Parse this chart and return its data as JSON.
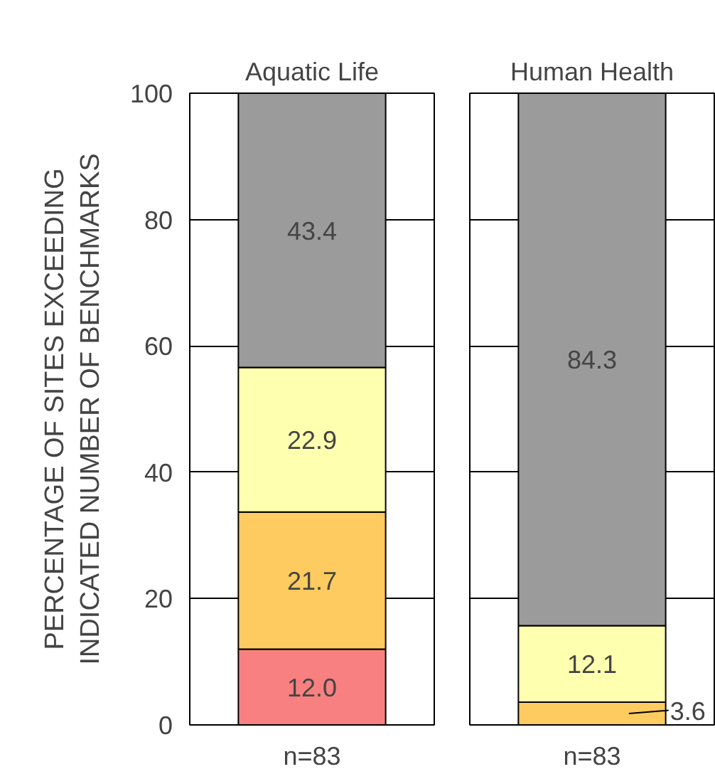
{
  "chart_data": [
    {
      "type": "bar",
      "stacked": true,
      "title": "Aquatic Life",
      "ylabel": "PERCENTAGE OF SITES EXCEEDING\nINDICATED NUMBER OF BENCHMARKS",
      "categories": [
        "n=83"
      ],
      "ylim": [
        0,
        100
      ],
      "yticks": [
        0,
        20,
        40,
        60,
        80,
        100
      ],
      "grid": "y",
      "series": [
        {
          "color": "#f98080",
          "values": [
            12.0
          ],
          "value_labels": [
            "12.0"
          ]
        },
        {
          "color": "#fdcb5f",
          "values": [
            21.7
          ],
          "value_labels": [
            "21.7"
          ]
        },
        {
          "color": "#ffffb0",
          "values": [
            22.9
          ],
          "value_labels": [
            "22.9"
          ]
        },
        {
          "color": "#9b9b9b",
          "values": [
            43.4
          ],
          "value_labels": [
            "43.4"
          ]
        }
      ]
    },
    {
      "type": "bar",
      "stacked": true,
      "title": "Human Health",
      "categories": [
        "n=83"
      ],
      "ylim": [
        0,
        100
      ],
      "yticks": [
        0,
        20,
        40,
        60,
        80,
        100
      ],
      "grid": "y",
      "tick_labels": "x",
      "series": [
        {
          "color": "#fdcb5f",
          "values": [
            3.6
          ],
          "value_labels": [
            "3.6"
          ]
        },
        {
          "color": "#ffffb0",
          "values": [
            12.1
          ],
          "value_labels": [
            "12.1"
          ]
        },
        {
          "color": "#9b9b9b",
          "values": [
            84.3
          ],
          "value_labels": [
            "84.3"
          ]
        }
      ]
    }
  ]
}
